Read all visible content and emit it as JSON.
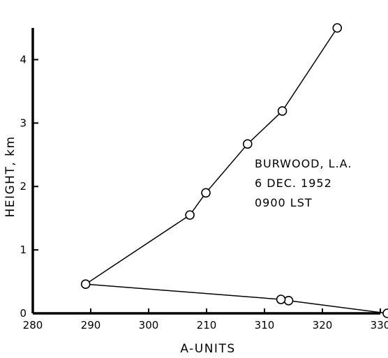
{
  "chart_data": {
    "type": "line",
    "xlabel": "A-UNITS",
    "ylabel": "HEIGHT, km",
    "xlim": [
      280,
      330
    ],
    "ylim": [
      0,
      4.5
    ],
    "x_tick_labels": [
      "280",
      "290",
      "300",
      "210",
      "310",
      "320",
      "330"
    ],
    "y_tick_labels": [
      "0",
      "1",
      "2",
      "3",
      "4"
    ],
    "annotation_lines": [
      "BURWOOD, L.A.",
      "6 DEC. 1952",
      "0900 LST"
    ],
    "series": [
      {
        "points": [
          {
            "x": 331,
            "y": 0.0
          },
          {
            "x": 316.8,
            "y": 0.2
          },
          {
            "x": 315.7,
            "y": 0.22
          },
          {
            "x": 287.6,
            "y": 0.46
          },
          {
            "x": 302.6,
            "y": 1.55
          },
          {
            "x": 304.9,
            "y": 1.9
          },
          {
            "x": 310.9,
            "y": 2.67
          },
          {
            "x": 315.9,
            "y": 3.19
          },
          {
            "x": 323.8,
            "y": 4.5
          }
        ]
      }
    ],
    "grid": false
  }
}
